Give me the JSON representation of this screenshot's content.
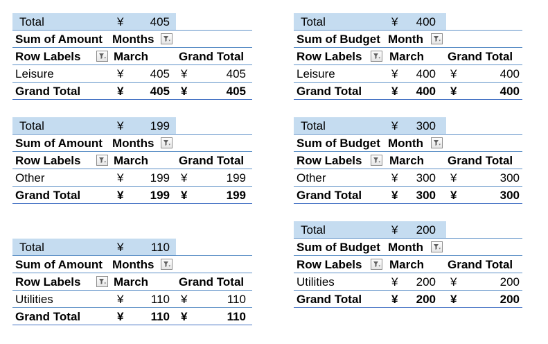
{
  "currency": "¥",
  "colors": {
    "total_fill": "#c5dcf0",
    "rule": "#5b8fc6"
  },
  "icons": {
    "filter": "filter-dropdown-icon"
  },
  "pivots": [
    {
      "total_label": "Total",
      "total_value": "405",
      "measure_label": "Sum of Amount",
      "column_field": "Months",
      "row_labels_header": "Row Labels",
      "column_item": "March",
      "grand_total_header": "Grand Total",
      "row_item": "Leisure",
      "row_value": "405",
      "row_grand": "405",
      "grand_total_label": "Grand Total",
      "grand_value": "405",
      "grand_grand": "405"
    },
    {
      "total_label": "Total",
      "total_value": "400",
      "measure_label": "Sum of Budget",
      "column_field": "Month",
      "row_labels_header": "Row Labels",
      "column_item": "March",
      "grand_total_header": "Grand Total",
      "row_item": "Leisure",
      "row_value": "400",
      "row_grand": "400",
      "grand_total_label": "Grand Total",
      "grand_value": "400",
      "grand_grand": "400"
    },
    {
      "total_label": "Total",
      "total_value": "199",
      "measure_label": "Sum of Amount",
      "column_field": "Months",
      "row_labels_header": "Row Labels",
      "column_item": "March",
      "grand_total_header": "Grand Total",
      "row_item": "Other",
      "row_value": "199",
      "row_grand": "199",
      "grand_total_label": "Grand Total",
      "grand_value": "199",
      "grand_grand": "199"
    },
    {
      "total_label": "Total",
      "total_value": "300",
      "measure_label": "Sum of Budget",
      "column_field": "Month",
      "row_labels_header": "Row Labels",
      "column_item": "March",
      "grand_total_header": "Grand Total",
      "row_item": "Other",
      "row_value": "300",
      "row_grand": "300",
      "grand_total_label": "Grand Total",
      "grand_value": "300",
      "grand_grand": "300"
    },
    {
      "total_label": "Total",
      "total_value": "110",
      "measure_label": "Sum of Amount",
      "column_field": "Months",
      "row_labels_header": "Row Labels",
      "column_item": "March",
      "grand_total_header": "Grand Total",
      "row_item": "Utilities",
      "row_value": "110",
      "row_grand": "110",
      "grand_total_label": "Grand Total",
      "grand_value": "110",
      "grand_grand": "110"
    },
    {
      "total_label": "Total",
      "total_value": "200",
      "measure_label": "Sum of Budget",
      "column_field": "Month",
      "row_labels_header": "Row Labels",
      "column_item": "March",
      "grand_total_header": "Grand Total",
      "row_item": "Utilities",
      "row_value": "200",
      "row_grand": "200",
      "grand_total_label": "Grand Total",
      "grand_value": "200",
      "grand_grand": "200"
    }
  ]
}
